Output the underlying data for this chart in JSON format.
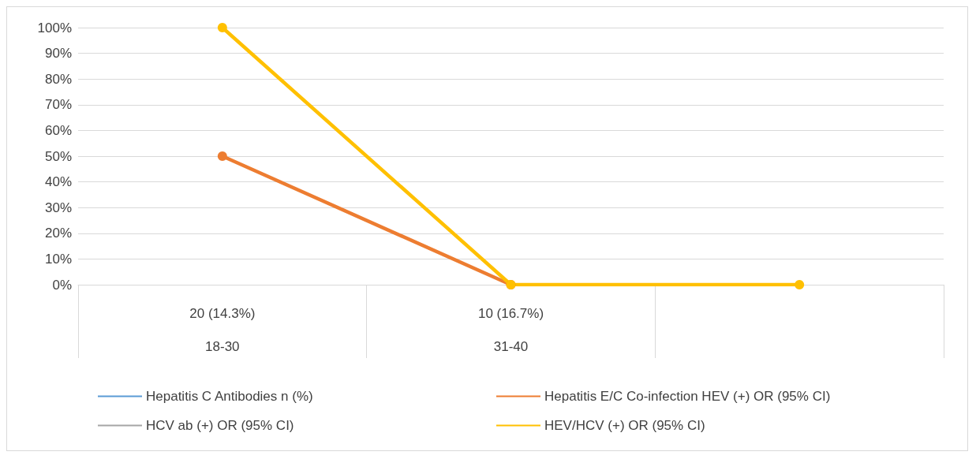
{
  "chart_data": {
    "type": "line",
    "categories": [
      "20 (14.3%)\n\n18-30",
      "10 (16.7%)\n\n31-40",
      null
    ],
    "series": [
      {
        "name": "Hepatitis C Antibodies n (%)",
        "color": "#5b9bd5",
        "values": [
          null,
          null,
          null
        ]
      },
      {
        "name": "Hepatitis E/C Co-infection HEV (+) OR (95% CI)",
        "color": "#ed7d31",
        "values": [
          50,
          0,
          null
        ]
      },
      {
        "name": "HCV ab (+) OR (95% CI)",
        "color": "#a5a5a5",
        "values": [
          null,
          null,
          null
        ]
      },
      {
        "name": "HEV/HCV (+) OR (95% CI)",
        "color": "#ffc000",
        "values": [
          100,
          0,
          0
        ]
      }
    ],
    "ylim": [
      0,
      100
    ],
    "yticks": [
      {
        "value": 0,
        "label": "0%"
      },
      {
        "value": 10,
        "label": "10%"
      },
      {
        "value": 20,
        "label": "20%"
      },
      {
        "value": 30,
        "label": "30%"
      },
      {
        "value": 40,
        "label": "40%"
      },
      {
        "value": 50,
        "label": "50%"
      },
      {
        "value": 60,
        "label": "60%"
      },
      {
        "value": 70,
        "label": "70%"
      },
      {
        "value": 80,
        "label": "80%"
      },
      {
        "value": 90,
        "label": "90%"
      },
      {
        "value": 100,
        "label": "100%"
      }
    ],
    "grid": "y",
    "legend": "bottom",
    "marker": "circle",
    "line_style": "solid"
  }
}
